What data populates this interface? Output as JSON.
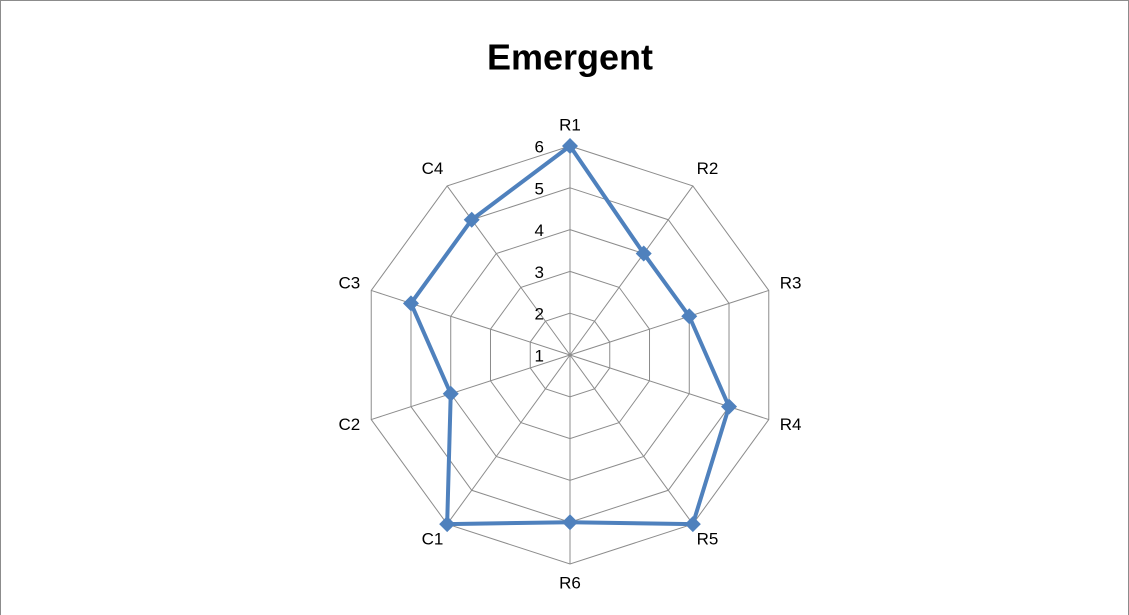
{
  "chart_data": {
    "type": "radar",
    "title": "Emergent",
    "categories": [
      "R1",
      "R2",
      "R3",
      "R4",
      "R5",
      "R6",
      "C1",
      "C2",
      "C3",
      "C4"
    ],
    "series": [
      {
        "color": "#4f81bd",
        "values": [
          6,
          4,
          4,
          5,
          6,
          5,
          6,
          4,
          5,
          5
        ]
      }
    ],
    "ylim": [
      1,
      6
    ],
    "yticks": [
      1,
      2,
      3,
      4,
      5,
      6
    ],
    "grid": true
  }
}
